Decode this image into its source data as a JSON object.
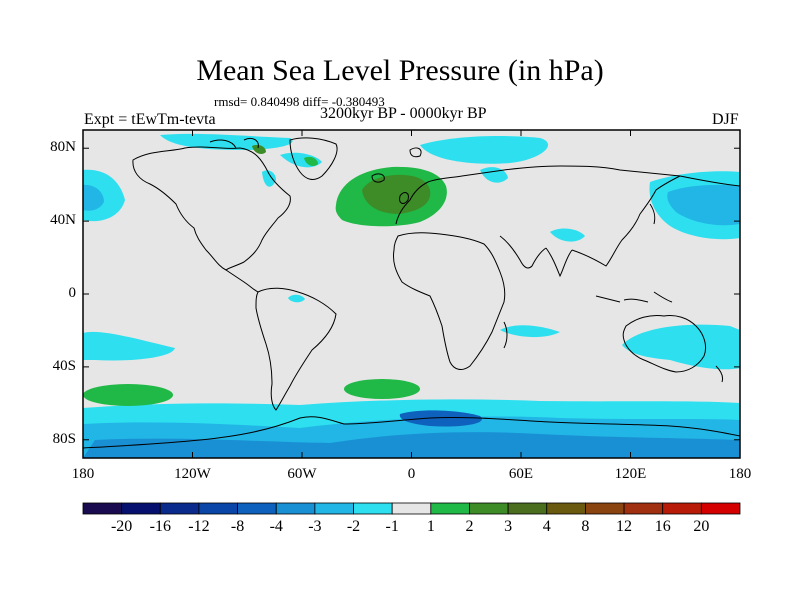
{
  "title": "Mean Sea Level Pressure (in hPa)",
  "stats": "rmsd= 0.840498 diff= -0.380493",
  "experiment": "Expt = tEwTm-tevta",
  "period": "3200kyr BP - 0000kyr BP",
  "season": "DJF",
  "y_axis": {
    "ticks": [
      80,
      40,
      0,
      -40,
      -80
    ],
    "labels": [
      "80N",
      "40N",
      "0",
      "40S",
      "80S"
    ]
  },
  "x_axis": {
    "ticks": [
      -180,
      -120,
      -60,
      0,
      60,
      120,
      180
    ],
    "labels": [
      "180",
      "120W",
      "60W",
      "0",
      "60E",
      "120E",
      "180"
    ]
  },
  "legend": {
    "colors": [
      "#1a0a50",
      "#06106e",
      "#0a2a8c",
      "#0a45a8",
      "#0e62bd",
      "#1a90d4",
      "#22b6e6",
      "#2ee0ef",
      "#e6e6e6",
      "#20b846",
      "#3d8c28",
      "#4a6e1e",
      "#6a5a10",
      "#8a4410",
      "#a03010",
      "#b81c08",
      "#d40000"
    ],
    "labels": [
      "-20",
      "-16",
      "-12",
      "-8",
      "-4",
      "-3",
      "-2",
      "-1",
      "1",
      "2",
      "3",
      "4",
      "8",
      "12",
      "16",
      "20"
    ]
  },
  "field_colors": {
    "background": "#e6e6e6",
    "neg1": "#2ee0ef",
    "neg2": "#22b6e6",
    "neg3": "#1a90d4",
    "neg4": "#0e62bd",
    "pos1": "#20b846",
    "pos2": "#3d8c28",
    "pos3": "#4a6e1e"
  }
}
